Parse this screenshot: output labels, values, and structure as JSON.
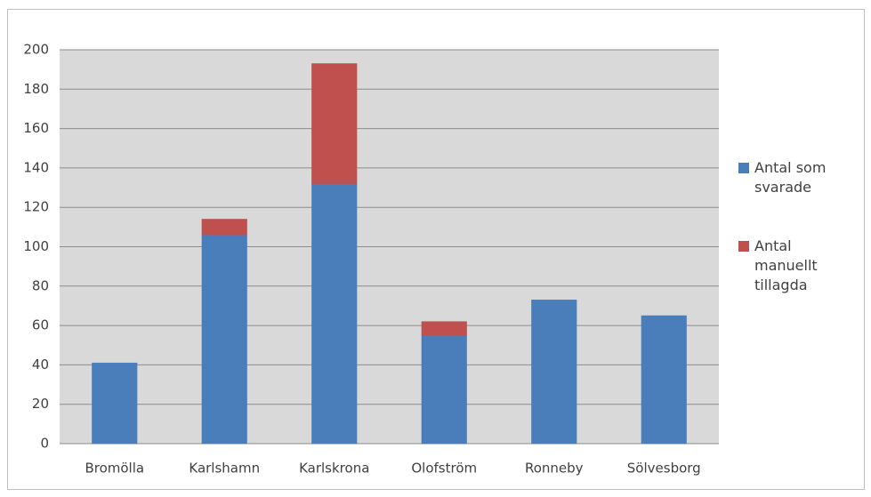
{
  "chart_data": {
    "type": "stacked_bar",
    "categories": [
      "Bromölla",
      "Karlshamn",
      "Karlskrona",
      "Olofström",
      "Ronneby",
      "Sölvesborg"
    ],
    "series": [
      {
        "name": "Antal som svarade",
        "color": "#4a7ebb",
        "values": [
          41,
          106,
          132,
          55,
          73,
          65
        ]
      },
      {
        "name": "Antal manuellt tillagda",
        "color": "#c0504d",
        "values": [
          0,
          8,
          61,
          7,
          0,
          0
        ]
      }
    ],
    "ylim": [
      0,
      200
    ],
    "yticks": [
      0,
      20,
      40,
      60,
      80,
      100,
      120,
      140,
      160,
      180,
      200
    ],
    "grid": true,
    "legend": "right"
  }
}
